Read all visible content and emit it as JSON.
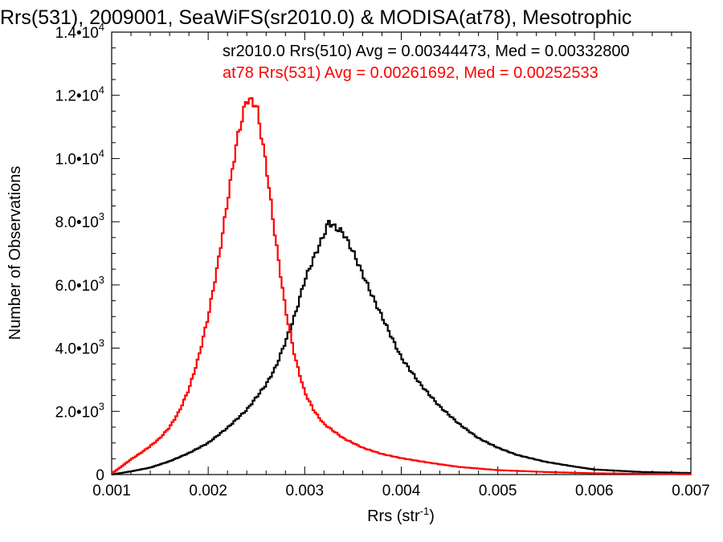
{
  "chart_data": {
    "type": "line",
    "title": "Rrs(531), 2009001, SeaWiFS(sr2010.0) & MODISA(at78), Mesotrophic",
    "xlabel_base": "Rrs (str",
    "xlabel_sup": "-1",
    "xlabel_close": ")",
    "ylabel": "Number of Observations",
    "xlim": [
      0.001,
      0.007
    ],
    "ylim": [
      0,
      14000
    ],
    "x_ticks": [
      0.001,
      0.002,
      0.003,
      0.004,
      0.005,
      0.006,
      0.007
    ],
    "x_tick_labels": [
      "0.001",
      "0.002",
      "0.003",
      "0.004",
      "0.005",
      "0.006",
      "0.007"
    ],
    "y_ticks": [
      0,
      2000,
      4000,
      6000,
      8000,
      10000,
      12000,
      14000
    ],
    "y_tick_labels": [
      {
        "mantissa": "0",
        "exp": ""
      },
      {
        "mantissa": "2.0•10",
        "exp": "3"
      },
      {
        "mantissa": "4.0•10",
        "exp": "3"
      },
      {
        "mantissa": "6.0•10",
        "exp": "3"
      },
      {
        "mantissa": "8.0•10",
        "exp": "3"
      },
      {
        "mantissa": "1.0•10",
        "exp": "4"
      },
      {
        "mantissa": "1.2•10",
        "exp": "4"
      },
      {
        "mantissa": "1.4•10",
        "exp": "4"
      }
    ],
    "grid": false,
    "legend_position": "top-right",
    "series": [
      {
        "label": "sr2010.0 Rrs(510) Avg = 0.00344473, Med = 0.00332800",
        "color": "#000000",
        "x": [
          0.001,
          0.0012,
          0.0014,
          0.0016,
          0.0018,
          0.002,
          0.0022,
          0.0024,
          0.0026,
          0.0027,
          0.0028,
          0.0029,
          0.003,
          0.0031,
          0.0032,
          0.00325,
          0.0033,
          0.0034,
          0.0035,
          0.0036,
          0.0037,
          0.0038,
          0.0039,
          0.004,
          0.0042,
          0.0044,
          0.0046,
          0.0048,
          0.005,
          0.0052,
          0.0055,
          0.0058,
          0.006,
          0.0065,
          0.007
        ],
        "y": [
          0,
          100,
          220,
          420,
          680,
          1000,
          1480,
          2050,
          2850,
          3400,
          4200,
          5050,
          6150,
          6900,
          7600,
          8000,
          7850,
          7650,
          7050,
          6350,
          5650,
          5000,
          4350,
          3700,
          2850,
          2150,
          1600,
          1150,
          850,
          620,
          400,
          250,
          160,
          80,
          50
        ]
      },
      {
        "label": "at78 Rrs(531) Avg = 0.00261692, Med = 0.00252533",
        "color": "#ff0000",
        "x": [
          0.001,
          0.0011,
          0.0012,
          0.0013,
          0.0014,
          0.0015,
          0.0016,
          0.0017,
          0.0018,
          0.0019,
          0.002,
          0.0021,
          0.0022,
          0.0023,
          0.0024,
          0.0025,
          0.0026,
          0.0027,
          0.0028,
          0.0029,
          0.003,
          0.0031,
          0.0032,
          0.0034,
          0.0036,
          0.0038,
          0.004,
          0.0043,
          0.0046,
          0.005,
          0.0055,
          0.006,
          0.007
        ],
        "y": [
          30,
          250,
          480,
          680,
          900,
          1150,
          1500,
          2000,
          2700,
          3700,
          5000,
          6650,
          8650,
          10600,
          11900,
          11700,
          9800,
          7400,
          5250,
          3700,
          2600,
          2000,
          1600,
          1150,
          850,
          650,
          520,
          370,
          240,
          140,
          80,
          40,
          10
        ]
      }
    ]
  }
}
